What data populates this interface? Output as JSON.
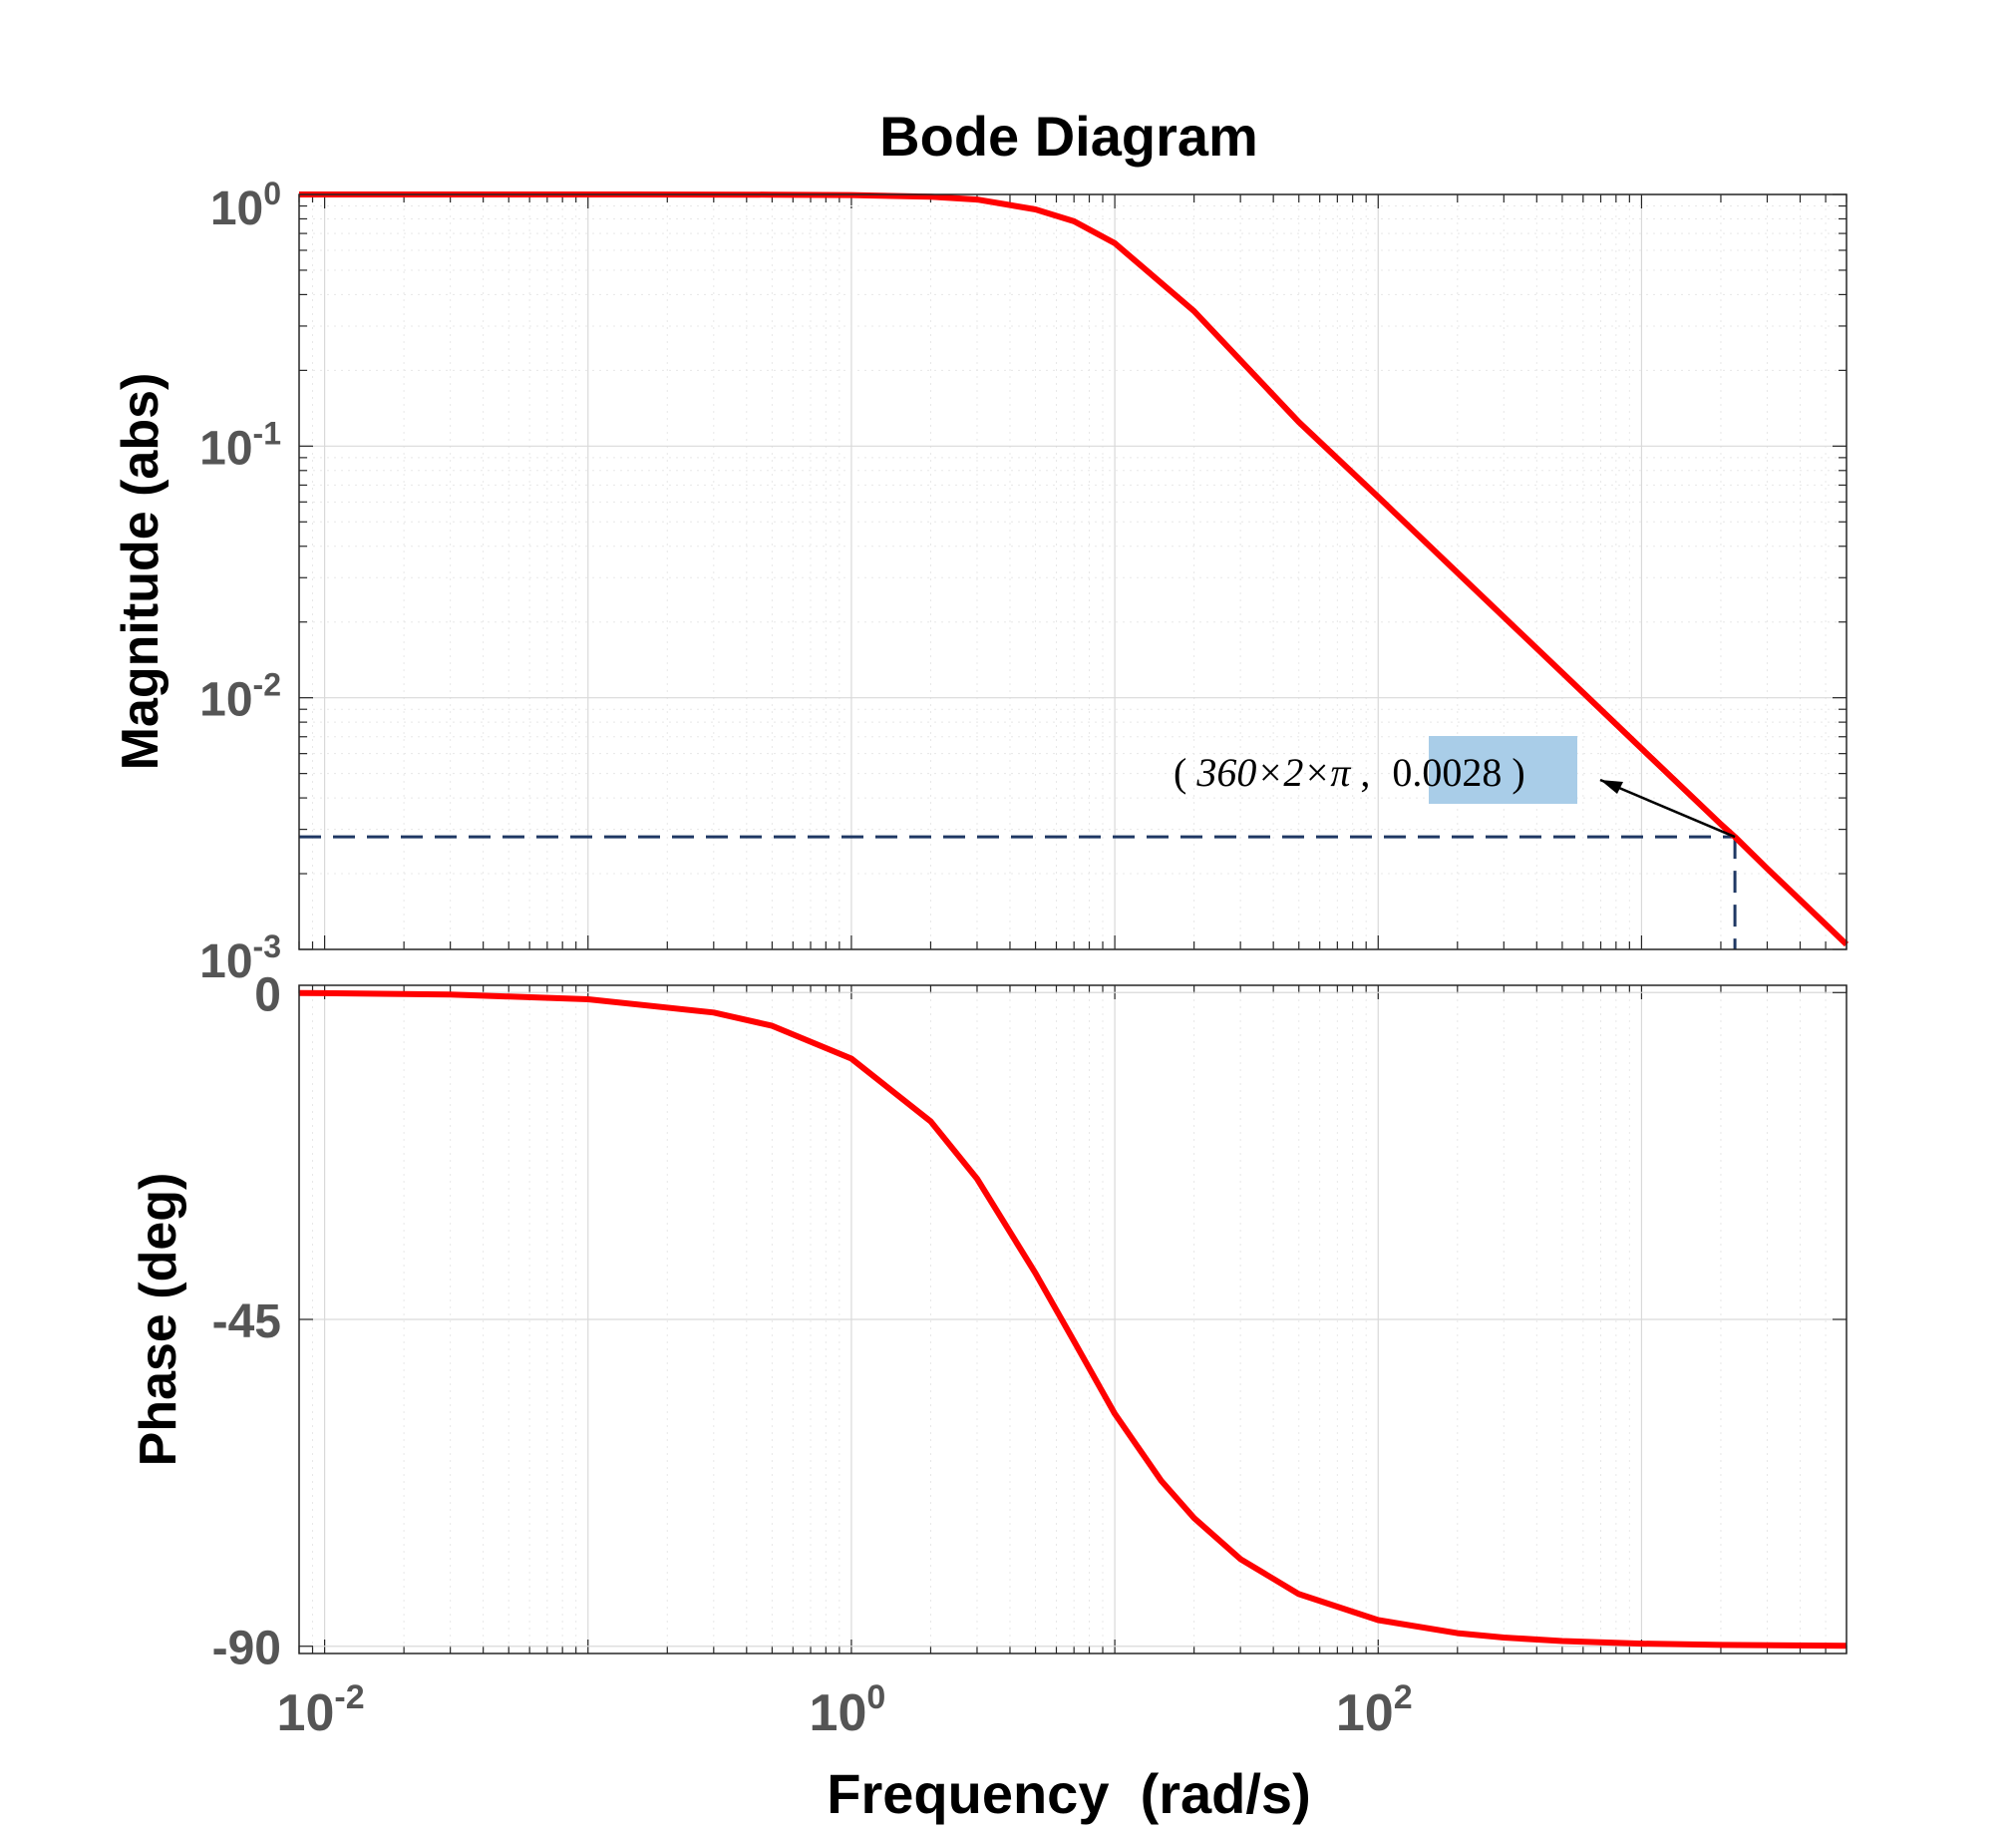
{
  "chart_data": {
    "type": "line",
    "title": "Bode Diagram",
    "xlabel": "Frequency  (rad/s)",
    "xscale": "log",
    "xlim": [
      0.008,
      6000
    ],
    "xticks": [
      {
        "value": 0.01,
        "base": "10",
        "exp": "-2"
      },
      {
        "value": 1,
        "base": "10",
        "exp": "0"
      },
      {
        "value": 100,
        "base": "10",
        "exp": "2"
      }
    ],
    "grid": true,
    "line_color": "#ff0000",
    "panels": [
      {
        "name": "magnitude",
        "ylabel": "Magnitude (abs)",
        "yscale": "log",
        "ylim": [
          0.001,
          1
        ],
        "yticks": [
          {
            "value": 1,
            "base": "10",
            "exp": "0"
          },
          {
            "value": 0.1,
            "base": "10",
            "exp": "-1"
          },
          {
            "value": 0.01,
            "base": "10",
            "exp": "-2"
          },
          {
            "value": 0.001,
            "base": "10",
            "exp": "-3"
          }
        ],
        "series": [
          {
            "x": [
              0.008,
              0.01,
              0.1,
              0.5,
              1,
              2,
              3,
              5,
              7,
              10,
              20,
              50,
              100,
              200,
              500,
              1000,
              2000,
              2262,
              3000,
              5000,
              6000
            ],
            "y": [
              1.0,
              1.0,
              1.0,
              0.9986,
              0.9946,
              0.979,
              0.9545,
              0.8719,
              0.7821,
              0.6402,
              0.3437,
              0.1246,
              0.0628,
              0.0314,
              0.01257,
              0.00628,
              0.003142,
              0.0028,
              0.002094,
              0.001257,
              0.001047
            ]
          }
        ]
      },
      {
        "name": "phase",
        "ylabel": "Phase (deg)",
        "yscale": "linear",
        "ylim": [
          -91,
          1
        ],
        "yticks": [
          {
            "value": 0,
            "label": "0"
          },
          {
            "value": -45,
            "label": "-45"
          },
          {
            "value": -90,
            "label": "-90"
          }
        ],
        "series": [
          {
            "x": [
              0.008,
              0.01,
              0.03,
              0.1,
              0.3,
              0.5,
              1,
              2,
              3,
              5,
              7,
              10,
              15,
              20,
              30,
              50,
              100,
              200,
              300,
              500,
              1000,
              2000,
              6000
            ],
            "y": [
              -0.07,
              -0.09,
              -0.27,
              -0.92,
              -2.75,
              -4.57,
              -9.09,
              -17.74,
              -25.64,
              -38.66,
              -48.01,
              -57.99,
              -67.2,
              -72.34,
              -78.0,
              -82.82,
              -86.4,
              -88.2,
              -88.8,
              -89.28,
              -89.64,
              -89.82,
              -89.94
            ]
          }
        ]
      }
    ],
    "annotation": {
      "text_prefix": "(",
      "text_x": "360×2×π",
      "text_comma": ",",
      "text_y": "0.0028",
      "text_suffix": ")",
      "point": {
        "x": 2262,
        "y": 0.0028
      },
      "highlight_color": "#a9cde8",
      "reference_line_color": "#1f3864",
      "reference_line_style": "dashed"
    }
  }
}
